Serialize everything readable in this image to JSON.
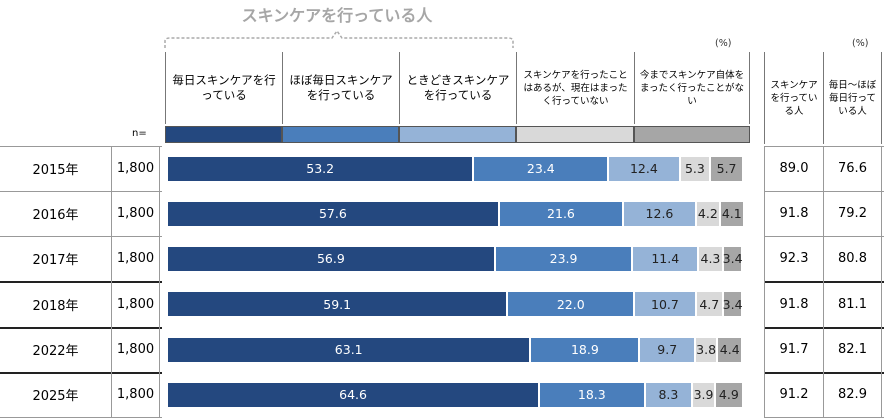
{
  "chart_data": {
    "type": "stacked-bar",
    "title": "スキンケアを行っている人",
    "unit": "(%)",
    "n_header": "n=",
    "categories": [
      "2015年",
      "2016年",
      "2017年",
      "2018年",
      "2022年",
      "2025年"
    ],
    "n_values": [
      "1,800",
      "1,800",
      "1,800",
      "1,800",
      "1,800",
      "1,800"
    ],
    "xlim": [
      0,
      100
    ],
    "series": [
      {
        "name": "毎日スキンケアを行っている",
        "color": "#24487f",
        "values": [
          53.2,
          57.6,
          56.9,
          59.1,
          63.1,
          64.6
        ],
        "value_labels": [
          "53.2",
          "57.6",
          "56.9",
          "59.1",
          "63.1",
          "64.6"
        ]
      },
      {
        "name": "ほぼ毎日スキンケアを行っている",
        "color": "#4a7ebb",
        "values": [
          23.4,
          21.6,
          23.9,
          22,
          18.9,
          18.3
        ],
        "value_labels": [
          "23.4",
          "21.6",
          "23.9",
          "22.0",
          "18.9",
          "18.3"
        ]
      },
      {
        "name": "ときどきスキンケアを行っている",
        "color": "#95b3d7",
        "values": [
          12.4,
          12.6,
          11.4,
          10.7,
          9.7,
          8.3
        ],
        "value_labels": [
          "12.4",
          "12.6",
          "11.4",
          "10.7",
          "9.7",
          "8.3"
        ]
      },
      {
        "name": "スキンケアを行ったことはあるが、現在はまったく行っていない",
        "color": "#d9d9d9",
        "values": [
          5.3,
          4.2,
          4.3,
          4.7,
          3.8,
          3.9
        ],
        "value_labels": [
          "5.3",
          "4.2",
          "4.3",
          "4.7",
          "3.8",
          "3.9"
        ]
      },
      {
        "name": "今までスキンケア自体をまったく行ったことがない",
        "color": "#a6a6a6",
        "values": [
          5.7,
          4.1,
          3.4,
          3.4,
          4.4,
          4.9
        ],
        "value_labels": [
          "5.7",
          "4.1",
          "3.4",
          "3.4",
          "4.4",
          "4.9"
        ]
      }
    ],
    "summary_unit": "(%)",
    "summary_columns": [
      {
        "name": "スキンケアを行っている人",
        "values": [
          "89.0",
          "91.8",
          "92.3",
          "91.8",
          "91.7",
          "91.2"
        ]
      },
      {
        "name": "毎日～ほぼ毎日行っている人",
        "values": [
          "76.6",
          "79.2",
          "80.8",
          "81.1",
          "82.1",
          "82.9"
        ]
      }
    ]
  }
}
